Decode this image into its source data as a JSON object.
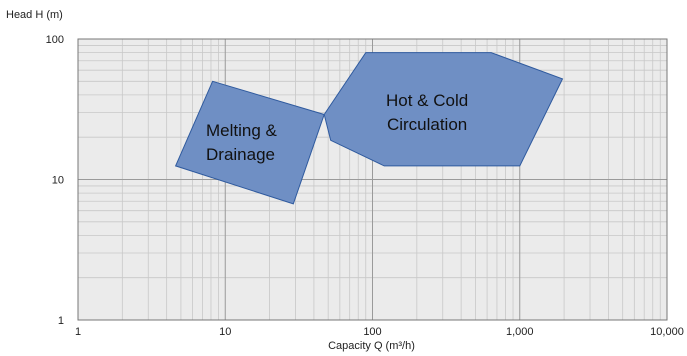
{
  "chart_data": {
    "type": "area",
    "title": "",
    "xlabel": "Capacity Q (m³/h)",
    "ylabel": "Head H (m)",
    "x_scale": "log",
    "y_scale": "log",
    "xlim": [
      1,
      10000
    ],
    "ylim": [
      1,
      100
    ],
    "x_ticks": [
      1,
      10,
      100,
      1000,
      10000
    ],
    "x_tick_labels": [
      "1",
      "10",
      "100",
      "1,000",
      "10,000"
    ],
    "y_ticks": [
      1,
      10,
      100
    ],
    "y_tick_labels": [
      "1",
      "10",
      "100"
    ],
    "grid": true,
    "legend": "none",
    "fill_color": "#6f8fc4",
    "edge_color": "#2f5a9e",
    "regions": [
      {
        "label_lines": [
          "Melting &",
          "Drainage"
        ],
        "points": [
          [
            4.6,
            12.5
          ],
          [
            8.2,
            50
          ],
          [
            47,
            29
          ],
          [
            29,
            6.7
          ]
        ]
      },
      {
        "label_lines": [
          "Hot & Cold",
          "Circulation"
        ],
        "points": [
          [
            47,
            29
          ],
          [
            90,
            80
          ],
          [
            640,
            80
          ],
          [
            1950,
            52
          ],
          [
            1000,
            12.5
          ],
          [
            120,
            12.5
          ],
          [
            52,
            19
          ]
        ]
      }
    ]
  }
}
